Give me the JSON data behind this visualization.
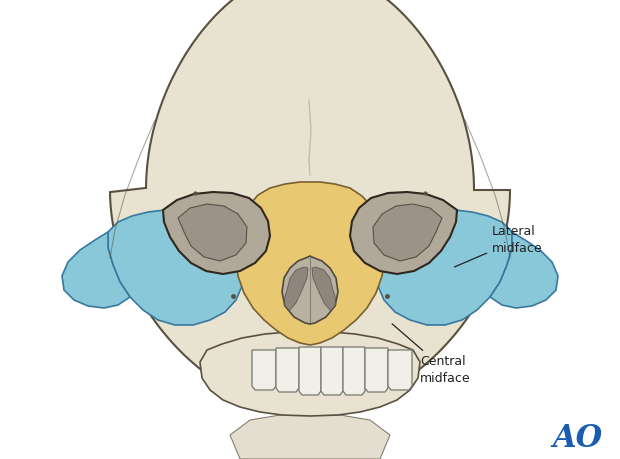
{
  "background_color": "#ffffff",
  "skull_fc": "#e8e2d0",
  "skull_ec": "#5a5040",
  "central_fc": "#e8c870",
  "central_ec": "#7a6030",
  "lateral_fc": "#88c8d8",
  "lateral_ec": "#3878a0",
  "orbit_fc": "#b0a898",
  "orbit_ec": "#302820",
  "orbit_inner_fc": "#908880",
  "nasal_fc": "#b8b0a0",
  "nasal_ec": "#504840",
  "nasal_inner": "#807870",
  "teeth_fc": "#f0f0e8",
  "teeth_ec": "#787870",
  "ann_color": "#222222",
  "ao_color": "#1a5cb0",
  "label_lateral": "Lateral\nmidface",
  "label_central": "Central\nmidface"
}
